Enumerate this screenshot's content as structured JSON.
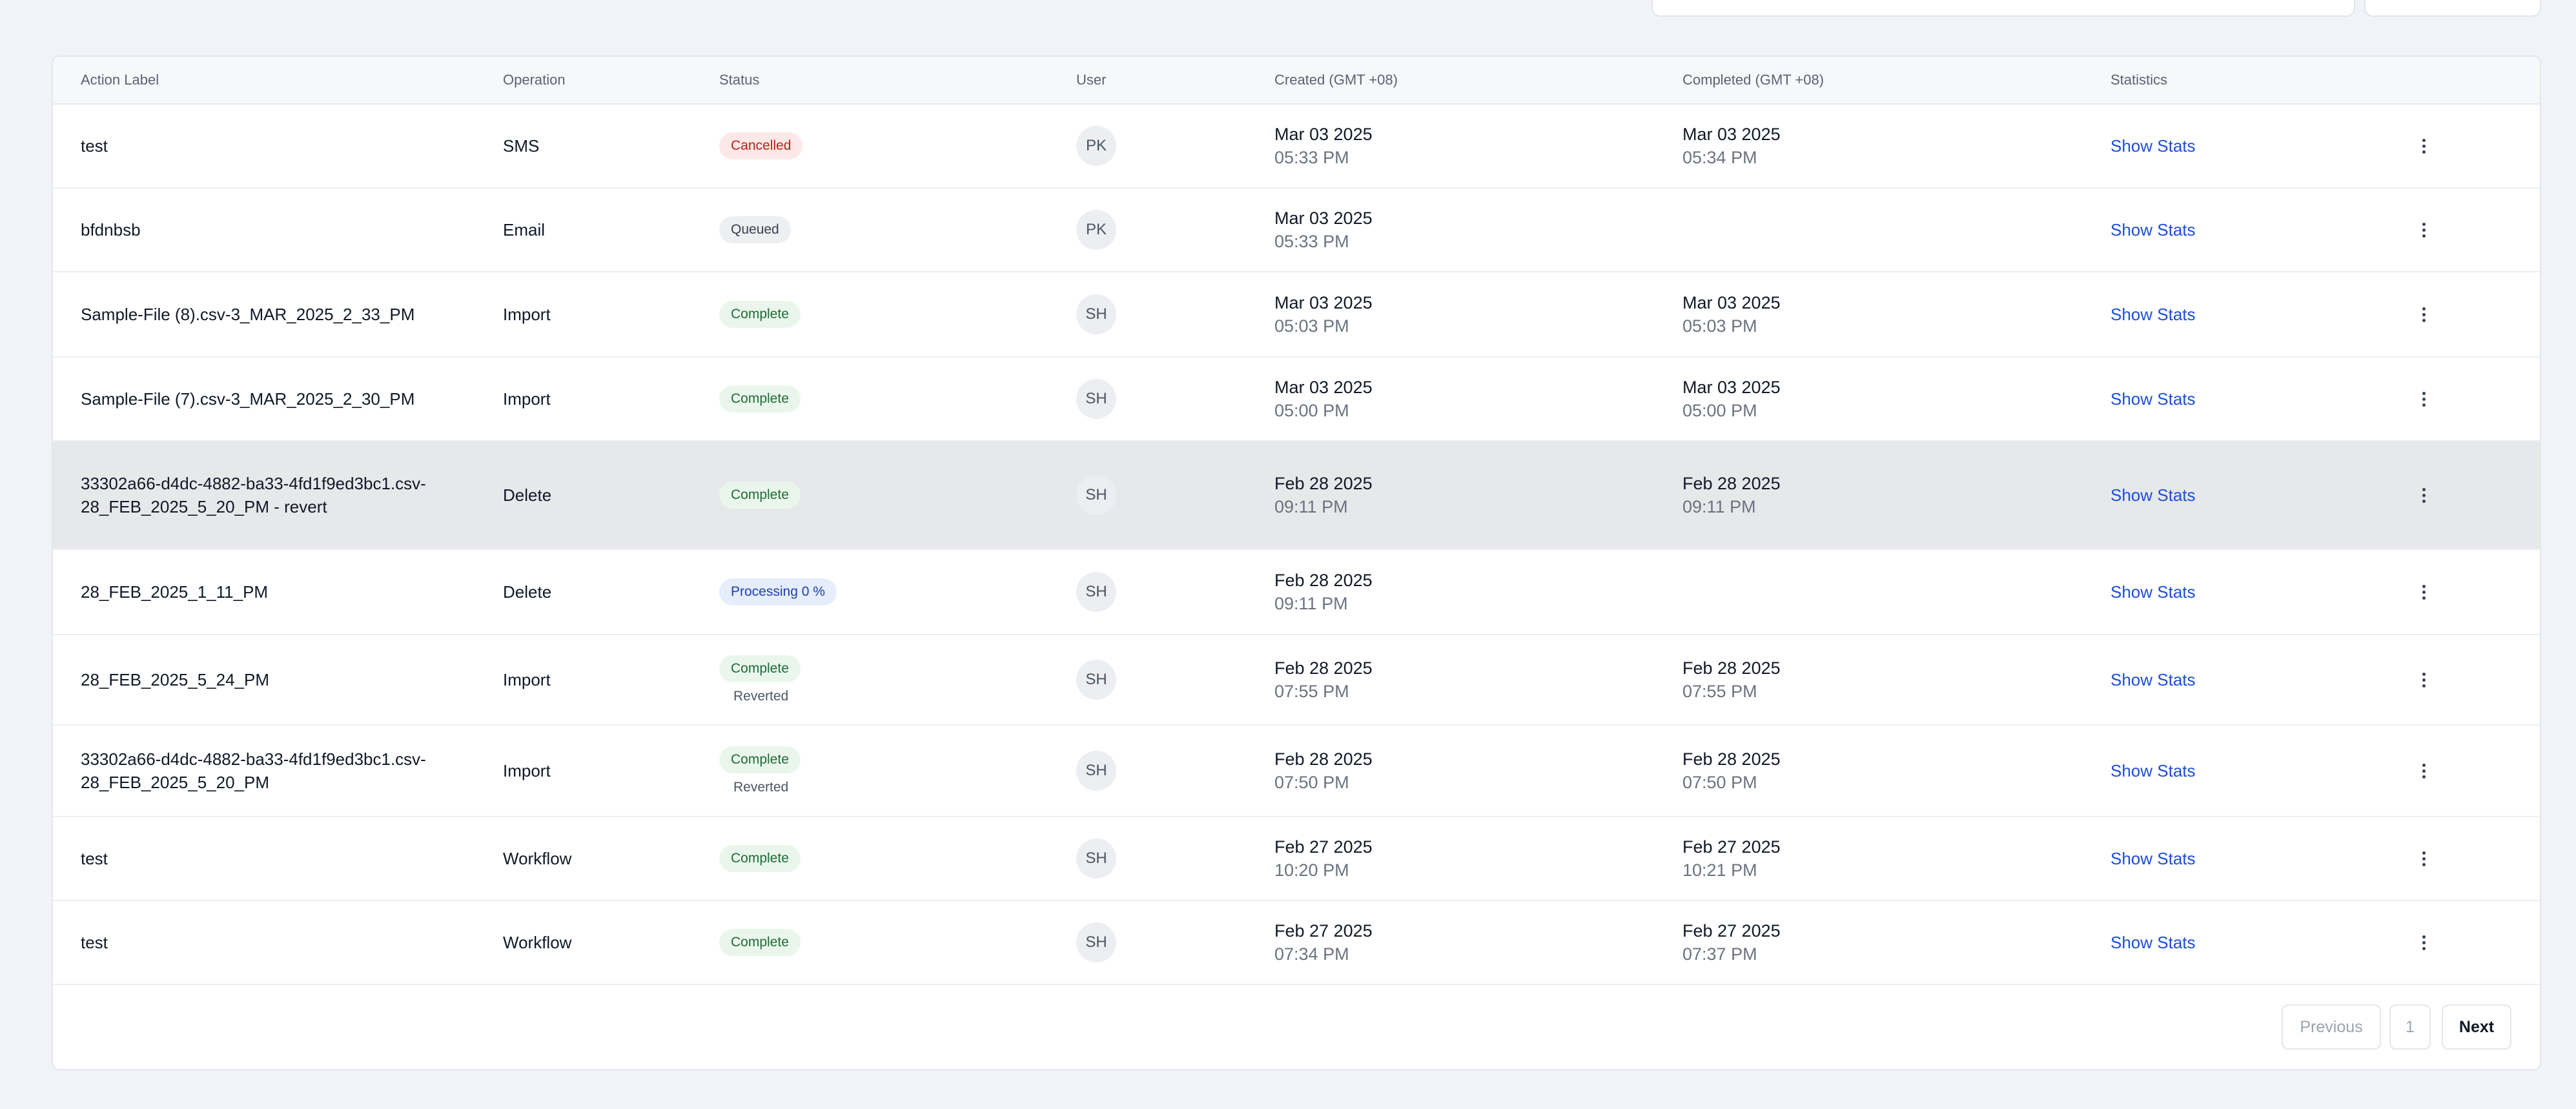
{
  "table": {
    "headers": {
      "action_label": "Action Label",
      "operation": "Operation",
      "status": "Status",
      "user": "User",
      "created": "Created (GMT +08)",
      "completed": "Completed (GMT +08)",
      "statistics": "Statistics"
    },
    "rows": [
      {
        "label": "test",
        "operation": "SMS",
        "status": "Cancelled",
        "status_type": "cancelled",
        "status_note": "",
        "user": "PK",
        "created_date": "Mar 03 2025",
        "created_time": "05:33 PM",
        "completed_date": "Mar 03 2025",
        "completed_time": "05:34 PM",
        "stats": "Show Stats"
      },
      {
        "label": "bfdnbsb",
        "operation": "Email",
        "status": "Queued",
        "status_type": "queued",
        "status_note": "",
        "user": "PK",
        "created_date": "Mar 03 2025",
        "created_time": "05:33 PM",
        "completed_date": "",
        "completed_time": "",
        "stats": "Show Stats"
      },
      {
        "label": "Sample-File (8).csv-3_MAR_2025_2_33_PM",
        "operation": "Import",
        "status": "Complete",
        "status_type": "complete",
        "status_note": "",
        "user": "SH",
        "created_date": "Mar 03 2025",
        "created_time": "05:03 PM",
        "completed_date": "Mar 03 2025",
        "completed_time": "05:03 PM",
        "stats": "Show Stats"
      },
      {
        "label": "Sample-File (7).csv-3_MAR_2025_2_30_PM",
        "operation": "Import",
        "status": "Complete",
        "status_type": "complete",
        "status_note": "",
        "user": "SH",
        "created_date": "Mar 03 2025",
        "created_time": "05:00 PM",
        "completed_date": "Mar 03 2025",
        "completed_time": "05:00 PM",
        "stats": "Show Stats"
      },
      {
        "label": "33302a66-d4dc-4882-ba33-4fd1f9ed3bc1.csv-28_FEB_2025_5_20_PM - revert",
        "operation": "Delete",
        "status": "Complete",
        "status_type": "complete",
        "status_note": "",
        "user": "SH",
        "created_date": "Feb 28 2025",
        "created_time": "09:11 PM",
        "completed_date": "Feb 28 2025",
        "completed_time": "09:11 PM",
        "stats": "Show Stats"
      },
      {
        "label": "28_FEB_2025_1_11_PM",
        "operation": "Delete",
        "status": "Processing 0 %",
        "status_type": "processing",
        "status_note": "",
        "user": "SH",
        "created_date": "Feb 28 2025",
        "created_time": "09:11 PM",
        "completed_date": "",
        "completed_time": "",
        "stats": "Show Stats"
      },
      {
        "label": "28_FEB_2025_5_24_PM",
        "operation": "Import",
        "status": "Complete",
        "status_type": "complete",
        "status_note": "Reverted",
        "user": "SH",
        "created_date": "Feb 28 2025",
        "created_time": "07:55 PM",
        "completed_date": "Feb 28 2025",
        "completed_time": "07:55 PM",
        "stats": "Show Stats"
      },
      {
        "label": "33302a66-d4dc-4882-ba33-4fd1f9ed3bc1.csv-28_FEB_2025_5_20_PM",
        "operation": "Import",
        "status": "Complete",
        "status_type": "complete",
        "status_note": "Reverted",
        "user": "SH",
        "created_date": "Feb 28 2025",
        "created_time": "07:50 PM",
        "completed_date": "Feb 28 2025",
        "completed_time": "07:50 PM",
        "stats": "Show Stats"
      },
      {
        "label": "test",
        "operation": "Workflow",
        "status": "Complete",
        "status_type": "complete",
        "status_note": "",
        "user": "SH",
        "created_date": "Feb 27 2025",
        "created_time": "10:20 PM",
        "completed_date": "Feb 27 2025",
        "completed_time": "10:21 PM",
        "stats": "Show Stats"
      },
      {
        "label": "test",
        "operation": "Workflow",
        "status": "Complete",
        "status_type": "complete",
        "status_note": "",
        "user": "SH",
        "created_date": "Feb 27 2025",
        "created_time": "07:34 PM",
        "completed_date": "Feb 27 2025",
        "completed_time": "07:37 PM",
        "stats": "Show Stats"
      }
    ]
  },
  "pagination": {
    "previous": "Previous",
    "page": "1",
    "next": "Next"
  },
  "colors": {
    "background": "#f1f3f8",
    "link": "#1d4ed8",
    "cancelled": "#b42318",
    "complete": "#1f6b36",
    "processing": "#1e40af"
  }
}
